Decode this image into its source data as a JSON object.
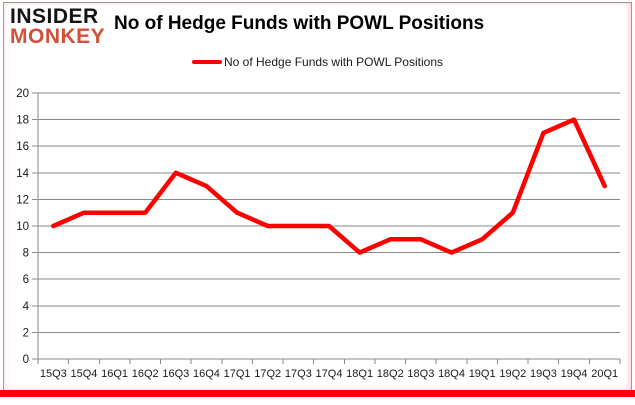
{
  "logo": {
    "line1": "INSIDER",
    "line2": "MONKEY"
  },
  "header": {
    "title": "No of Hedge Funds with POWL Positions"
  },
  "legend": {
    "label": "No of Hedge Funds with POWL Positions",
    "marker_color": "#fe0000"
  },
  "chart_data": {
    "type": "line",
    "title": "No of Hedge Funds with POWL Positions",
    "categories": [
      "15Q3",
      "15Q4",
      "16Q1",
      "16Q2",
      "16Q3",
      "16Q4",
      "17Q1",
      "17Q2",
      "17Q3",
      "17Q4",
      "18Q1",
      "18Q2",
      "18Q3",
      "18Q4",
      "19Q1",
      "19Q2",
      "19Q3",
      "19Q4",
      "20Q1"
    ],
    "series": [
      {
        "name": "No of Hedge Funds with POWL Positions",
        "color": "#fe0000",
        "values": [
          10,
          11,
          11,
          11,
          14,
          13,
          11,
          10,
          10,
          10,
          8,
          9,
          9,
          8,
          9,
          11,
          17,
          18,
          13
        ]
      }
    ],
    "xlabel": "",
    "ylabel": "",
    "ylim": [
      0,
      20
    ],
    "yticks": [
      0,
      2,
      4,
      6,
      8,
      10,
      12,
      14,
      16,
      18,
      20
    ],
    "grid": true,
    "legend_position": "top-center"
  },
  "colors": {
    "accent_red": "#fe0000",
    "logo_monkey": "#d0503a",
    "gridline": "#8a8a8a",
    "axis_text": "#1a1a1a",
    "frame_border": "#9b9b9b"
  }
}
